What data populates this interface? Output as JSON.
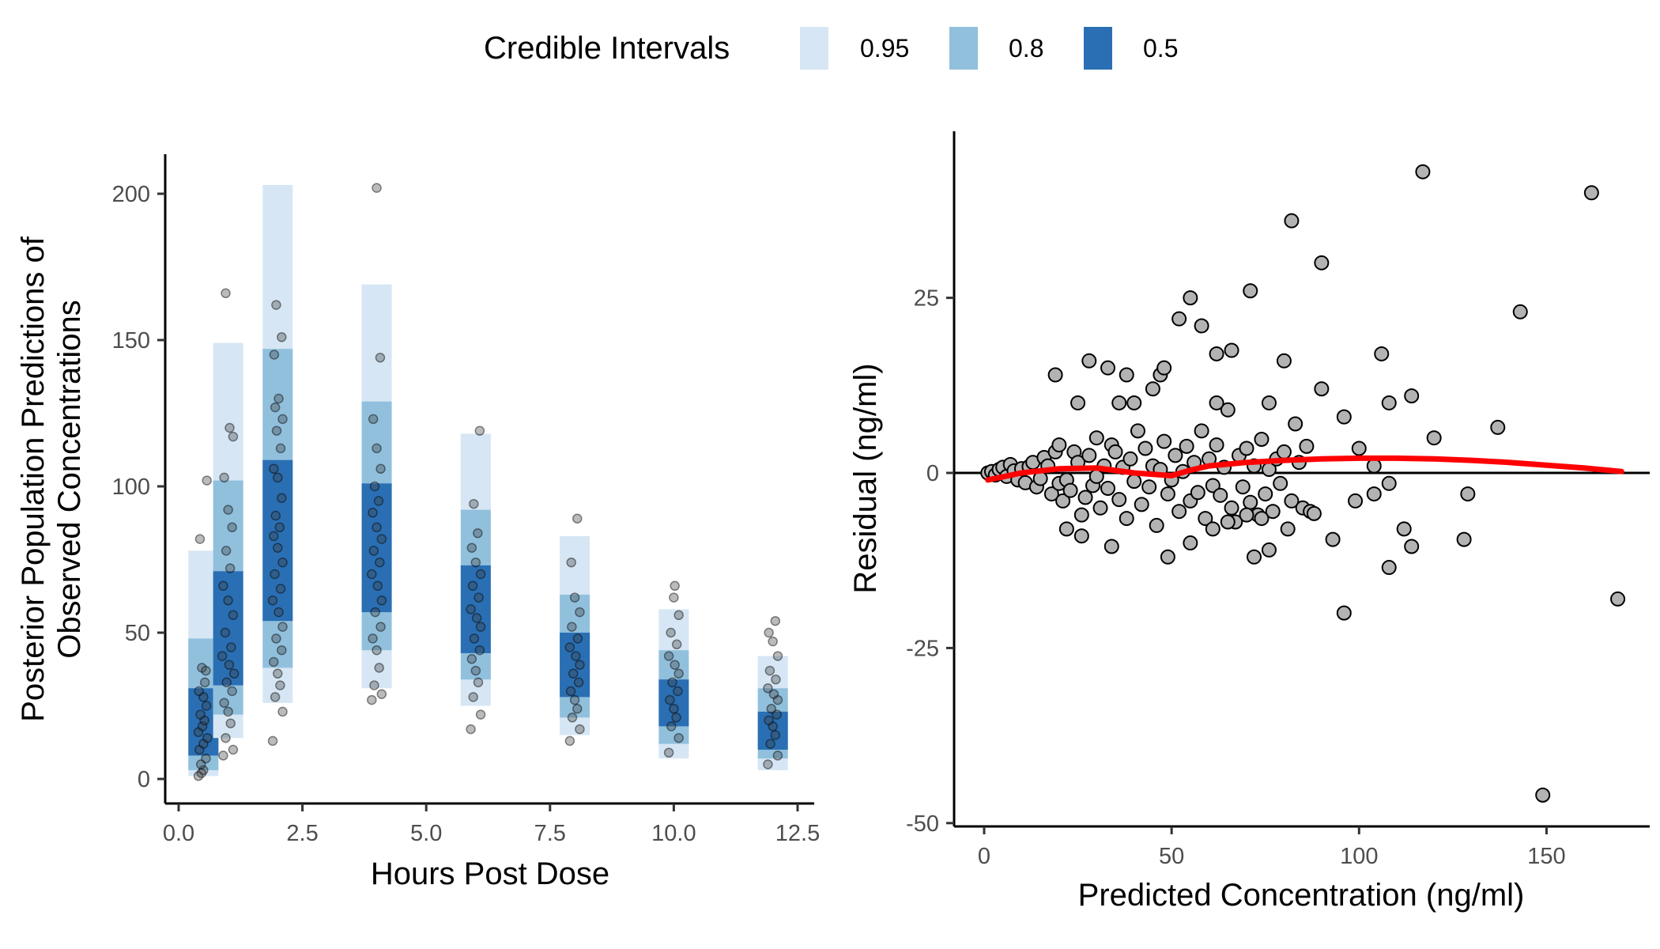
{
  "legend": {
    "title": "Credible Intervals",
    "items": [
      {
        "label": "0.95",
        "color": "#d6e6f4"
      },
      {
        "label": "0.8",
        "color": "#91c0dd"
      },
      {
        "label": "0.5",
        "color": "#2a6fb3"
      }
    ]
  },
  "chart_data": [
    {
      "type": "interval-strip",
      "xlabel": "Hours Post Dose",
      "ylabel_lines": [
        "Posterior Population Predictions of",
        "Observed Concentrations"
      ],
      "xlim": [
        0,
        12.5
      ],
      "ylim": [
        0,
        200
      ],
      "xticks": [
        0,
        2.5,
        5,
        7.5,
        10,
        12.5
      ],
      "xtick_labels": [
        "0.0",
        "2.5",
        "5.0",
        "7.5",
        "10.0",
        "12.5"
      ],
      "yticks": [
        0,
        50,
        100,
        150,
        200
      ],
      "ytick_labels": [
        "0",
        "50",
        "100",
        "150",
        "200"
      ],
      "interval_levels": [
        "0.95",
        "0.8",
        "0.5"
      ],
      "intervals": [
        {
          "time": 0.5,
          "ci95": [
            1,
            78
          ],
          "ci80": [
            3,
            48
          ],
          "ci50": [
            8,
            31
          ]
        },
        {
          "time": 1,
          "ci95": [
            14,
            149
          ],
          "ci80": [
            22,
            102
          ],
          "ci50": [
            32,
            71
          ]
        },
        {
          "time": 2,
          "ci95": [
            26,
            203
          ],
          "ci80": [
            38,
            147
          ],
          "ci50": [
            54,
            109
          ]
        },
        {
          "time": 4,
          "ci95": [
            31,
            169
          ],
          "ci80": [
            44,
            129
          ],
          "ci50": [
            57,
            101
          ]
        },
        {
          "time": 6,
          "ci95": [
            25,
            118
          ],
          "ci80": [
            34,
            92
          ],
          "ci50": [
            43,
            73
          ]
        },
        {
          "time": 8,
          "ci95": [
            15,
            83
          ],
          "ci80": [
            21,
            63
          ],
          "ci50": [
            28,
            50
          ]
        },
        {
          "time": 10,
          "ci95": [
            7,
            58
          ],
          "ci80": [
            12,
            44
          ],
          "ci50": [
            18,
            34
          ]
        },
        {
          "time": 12,
          "ci95": [
            3,
            42
          ],
          "ci80": [
            7,
            31
          ],
          "ci50": [
            10,
            23
          ]
        }
      ],
      "observations": [
        [
          0.4,
          1
        ],
        [
          0.5,
          3
        ],
        [
          0.45,
          5
        ],
        [
          0.55,
          7
        ],
        [
          0.42,
          10
        ],
        [
          0.5,
          12
        ],
        [
          0.58,
          14
        ],
        [
          0.4,
          16
        ],
        [
          0.48,
          18
        ],
        [
          0.52,
          20
        ],
        [
          0.44,
          22
        ],
        [
          0.56,
          25
        ],
        [
          0.5,
          28
        ],
        [
          0.41,
          30
        ],
        [
          0.53,
          33
        ],
        [
          0.47,
          38
        ],
        [
          0.55,
          37
        ],
        [
          0.43,
          82
        ],
        [
          0.57,
          102
        ],
        [
          0.46,
          2
        ],
        [
          0.9,
          8
        ],
        [
          1.1,
          10
        ],
        [
          0.95,
          14
        ],
        [
          1.05,
          19
        ],
        [
          1.0,
          23
        ],
        [
          0.92,
          26
        ],
        [
          1.08,
          30
        ],
        [
          0.97,
          33
        ],
        [
          1.12,
          36
        ],
        [
          1.02,
          39
        ],
        [
          0.88,
          42
        ],
        [
          1.06,
          45
        ],
        [
          0.94,
          50
        ],
        [
          1.1,
          56
        ],
        [
          1.0,
          61
        ],
        [
          0.9,
          66
        ],
        [
          1.04,
          72
        ],
        [
          0.96,
          78
        ],
        [
          1.08,
          86
        ],
        [
          1.0,
          92
        ],
        [
          0.92,
          103
        ],
        [
          1.1,
          117
        ],
        [
          1.03,
          120
        ],
        [
          0.95,
          166
        ],
        [
          1.9,
          13
        ],
        [
          2.1,
          23
        ],
        [
          1.95,
          28
        ],
        [
          2.05,
          32
        ],
        [
          2.0,
          36
        ],
        [
          1.92,
          40
        ],
        [
          2.08,
          44
        ],
        [
          1.97,
          48
        ],
        [
          2.1,
          52
        ],
        [
          2.02,
          57
        ],
        [
          1.9,
          61
        ],
        [
          2.06,
          65
        ],
        [
          1.94,
          70
        ],
        [
          2.1,
          74
        ],
        [
          2.0,
          79
        ],
        [
          1.92,
          83
        ],
        [
          2.04,
          86
        ],
        [
          1.96,
          90
        ],
        [
          2.08,
          96
        ],
        [
          2.0,
          103
        ],
        [
          1.92,
          106
        ],
        [
          2.06,
          113
        ],
        [
          1.98,
          119
        ],
        [
          2.1,
          123
        ],
        [
          1.95,
          127
        ],
        [
          2.02,
          130
        ],
        [
          1.93,
          145
        ],
        [
          2.08,
          151
        ],
        [
          1.97,
          162
        ],
        [
          3.9,
          27
        ],
        [
          4.1,
          29
        ],
        [
          3.95,
          32
        ],
        [
          4.05,
          38
        ],
        [
          4.0,
          44
        ],
        [
          3.92,
          48
        ],
        [
          4.08,
          52
        ],
        [
          3.97,
          57
        ],
        [
          4.1,
          61
        ],
        [
          4.02,
          66
        ],
        [
          3.9,
          70
        ],
        [
          4.06,
          74
        ],
        [
          3.94,
          78
        ],
        [
          4.1,
          82
        ],
        [
          4.0,
          86
        ],
        [
          3.92,
          91
        ],
        [
          4.04,
          95
        ],
        [
          3.96,
          100
        ],
        [
          4.08,
          106
        ],
        [
          4.0,
          113
        ],
        [
          3.93,
          123
        ],
        [
          4.07,
          144
        ],
        [
          4.0,
          202
        ],
        [
          5.9,
          17
        ],
        [
          6.1,
          22
        ],
        [
          5.95,
          28
        ],
        [
          6.05,
          33
        ],
        [
          6.0,
          37
        ],
        [
          5.92,
          41
        ],
        [
          6.08,
          44
        ],
        [
          5.97,
          48
        ],
        [
          6.1,
          52
        ],
        [
          6.02,
          55
        ],
        [
          5.9,
          58
        ],
        [
          6.06,
          62
        ],
        [
          5.94,
          66
        ],
        [
          6.1,
          70
        ],
        [
          6.0,
          74
        ],
        [
          5.92,
          79
        ],
        [
          6.04,
          84
        ],
        [
          5.96,
          94
        ],
        [
          6.08,
          119
        ],
        [
          7.9,
          13
        ],
        [
          8.1,
          17
        ],
        [
          7.95,
          21
        ],
        [
          8.05,
          24
        ],
        [
          8.0,
          27
        ],
        [
          7.92,
          30
        ],
        [
          8.08,
          33
        ],
        [
          7.97,
          36
        ],
        [
          8.1,
          39
        ],
        [
          8.02,
          42
        ],
        [
          7.9,
          45
        ],
        [
          8.06,
          48
        ],
        [
          7.94,
          52
        ],
        [
          8.1,
          57
        ],
        [
          8.0,
          62
        ],
        [
          7.93,
          74
        ],
        [
          8.05,
          89
        ],
        [
          9.9,
          9
        ],
        [
          10.1,
          14
        ],
        [
          9.95,
          18
        ],
        [
          10.05,
          21
        ],
        [
          10.0,
          24
        ],
        [
          9.92,
          27
        ],
        [
          10.08,
          30
        ],
        [
          9.97,
          33
        ],
        [
          10.1,
          36
        ],
        [
          10.02,
          39
        ],
        [
          9.9,
          42
        ],
        [
          10.06,
          46
        ],
        [
          9.94,
          50
        ],
        [
          10.1,
          56
        ],
        [
          10.0,
          62
        ],
        [
          10.02,
          66
        ],
        [
          11.9,
          5
        ],
        [
          12.1,
          8
        ],
        [
          11.95,
          12
        ],
        [
          12.05,
          15
        ],
        [
          12.0,
          18
        ],
        [
          11.92,
          20
        ],
        [
          12.08,
          22
        ],
        [
          11.97,
          24
        ],
        [
          12.1,
          27
        ],
        [
          12.02,
          29
        ],
        [
          11.9,
          31
        ],
        [
          12.06,
          34
        ],
        [
          11.94,
          37
        ],
        [
          12.1,
          42
        ],
        [
          12.0,
          47
        ],
        [
          11.92,
          50
        ],
        [
          12.05,
          54
        ]
      ]
    },
    {
      "type": "scatter",
      "xlabel": "Predicted Concentration (ng/ml)",
      "ylabel": "Residual (ng/ml)",
      "xlim": [
        -7,
        177
      ],
      "ylim": [
        -50,
        50
      ],
      "xticks": [
        0,
        50,
        100,
        150
      ],
      "xtick_labels": [
        "0",
        "50",
        "100",
        "150"
      ],
      "yticks": [
        -50,
        -25,
        0,
        25
      ],
      "ytick_labels": [
        "-50",
        "-25",
        "0",
        "25"
      ],
      "reference_line_y": 0,
      "smooth": [
        [
          1,
          -1
        ],
        [
          10,
          0
        ],
        [
          20,
          0.6
        ],
        [
          30,
          0.7
        ],
        [
          40,
          0
        ],
        [
          50,
          -0.4
        ],
        [
          55,
          0.4
        ],
        [
          60,
          1
        ],
        [
          70,
          1.5
        ],
        [
          80,
          1.8
        ],
        [
          90,
          2
        ],
        [
          100,
          2.1
        ],
        [
          110,
          2.1
        ],
        [
          120,
          2
        ],
        [
          130,
          1.8
        ],
        [
          140,
          1.5
        ],
        [
          150,
          1.1
        ],
        [
          160,
          0.7
        ],
        [
          170,
          0.2
        ]
      ],
      "points": [
        [
          1,
          0
        ],
        [
          2,
          0.2
        ],
        [
          3,
          -0.3
        ],
        [
          4,
          0.5
        ],
        [
          5,
          0.8
        ],
        [
          6,
          -0.5
        ],
        [
          7,
          1.2
        ],
        [
          8,
          0.3
        ],
        [
          9,
          -1
        ],
        [
          10,
          0.6
        ],
        [
          11,
          -1.4
        ],
        [
          12,
          0.9
        ],
        [
          13,
          1.5
        ],
        [
          14,
          -2
        ],
        [
          15,
          -0.8
        ],
        [
          16,
          2.2
        ],
        [
          17,
          1
        ],
        [
          18,
          -3
        ],
        [
          19,
          3
        ],
        [
          20,
          -1.5
        ],
        [
          20,
          4
        ],
        [
          21,
          -4
        ],
        [
          22,
          -1
        ],
        [
          23,
          -2.5
        ],
        [
          24,
          3
        ],
        [
          25,
          1.5
        ],
        [
          26,
          -6
        ],
        [
          27,
          -3.5
        ],
        [
          28,
          2.5
        ],
        [
          29,
          -1.8
        ],
        [
          30,
          -0.5
        ],
        [
          30,
          5
        ],
        [
          31,
          -5
        ],
        [
          32,
          1
        ],
        [
          33,
          -2.2
        ],
        [
          34,
          4
        ],
        [
          35,
          3
        ],
        [
          36,
          -3.8
        ],
        [
          37,
          0.8
        ],
        [
          38,
          -6.5
        ],
        [
          39,
          2
        ],
        [
          40,
          -1.2
        ],
        [
          41,
          6
        ],
        [
          42,
          -4.5
        ],
        [
          43,
          3.5
        ],
        [
          44,
          -2
        ],
        [
          45,
          1
        ],
        [
          46,
          -7.5
        ],
        [
          47,
          0.5
        ],
        [
          48,
          4.5
        ],
        [
          49,
          -3
        ],
        [
          50,
          -1
        ],
        [
          51,
          2.5
        ],
        [
          52,
          -5.5
        ],
        [
          53,
          0.2
        ],
        [
          54,
          3.8
        ],
        [
          55,
          -4
        ],
        [
          56,
          1.5
        ],
        [
          57,
          -2.8
        ],
        [
          58,
          6
        ],
        [
          59,
          -6.5
        ],
        [
          60,
          2
        ],
        [
          61,
          -1.8
        ],
        [
          62,
          4
        ],
        [
          63,
          -3.2
        ],
        [
          64,
          0.8
        ],
        [
          65,
          9
        ],
        [
          66,
          -5
        ],
        [
          67,
          -7
        ],
        [
          68,
          2.5
        ],
        [
          69,
          -2
        ],
        [
          70,
          3.5
        ],
        [
          71,
          -4.2
        ],
        [
          72,
          1
        ],
        [
          73,
          -6
        ],
        [
          74,
          4.8
        ],
        [
          75,
          -3
        ],
        [
          76,
          0.5
        ],
        [
          77,
          -5.5
        ],
        [
          78,
          2
        ],
        [
          79,
          -1.5
        ],
        [
          80,
          3
        ],
        [
          81,
          -8
        ],
        [
          82,
          -4
        ],
        [
          83,
          7
        ],
        [
          84,
          1.5
        ],
        [
          85,
          -5
        ],
        [
          86,
          3.8
        ],
        [
          87,
          -5.5
        ],
        [
          88,
          -5.8
        ],
        [
          19,
          14
        ],
        [
          28,
          16
        ],
        [
          33,
          15
        ],
        [
          36,
          10
        ],
        [
          38,
          14
        ],
        [
          45,
          12
        ],
        [
          47,
          14
        ],
        [
          52,
          22
        ],
        [
          55,
          25
        ],
        [
          58,
          21
        ],
        [
          62,
          17
        ],
        [
          66,
          17.5
        ],
        [
          71,
          26
        ],
        [
          76,
          10
        ],
        [
          80,
          16
        ],
        [
          82,
          36
        ],
        [
          90,
          30
        ],
        [
          90,
          12
        ],
        [
          96,
          8
        ],
        [
          100,
          3.5
        ],
        [
          104,
          1
        ],
        [
          106,
          17
        ],
        [
          108,
          10
        ],
        [
          117,
          43
        ],
        [
          114,
          11
        ],
        [
          120,
          5
        ],
        [
          137,
          6.5
        ],
        [
          143,
          23
        ],
        [
          162,
          40
        ],
        [
          25,
          10
        ],
        [
          40,
          10
        ],
        [
          48,
          15
        ],
        [
          62,
          10
        ],
        [
          72,
          -12
        ],
        [
          76,
          -11
        ],
        [
          96,
          -20
        ],
        [
          99,
          -4
        ],
        [
          93,
          -9.5
        ],
        [
          104,
          -3
        ],
        [
          108,
          -13.5
        ],
        [
          108,
          -1.5
        ],
        [
          112,
          -8
        ],
        [
          114,
          -10.5
        ],
        [
          128,
          -9.5
        ],
        [
          129,
          -3
        ],
        [
          149,
          -46
        ],
        [
          169,
          -18
        ],
        [
          22,
          -8
        ],
        [
          26,
          -9
        ],
        [
          34,
          -10.5
        ],
        [
          49,
          -12
        ],
        [
          55,
          -10
        ],
        [
          61,
          -8
        ],
        [
          65,
          -7
        ],
        [
          70,
          -6
        ],
        [
          74,
          -6.5
        ]
      ]
    }
  ]
}
